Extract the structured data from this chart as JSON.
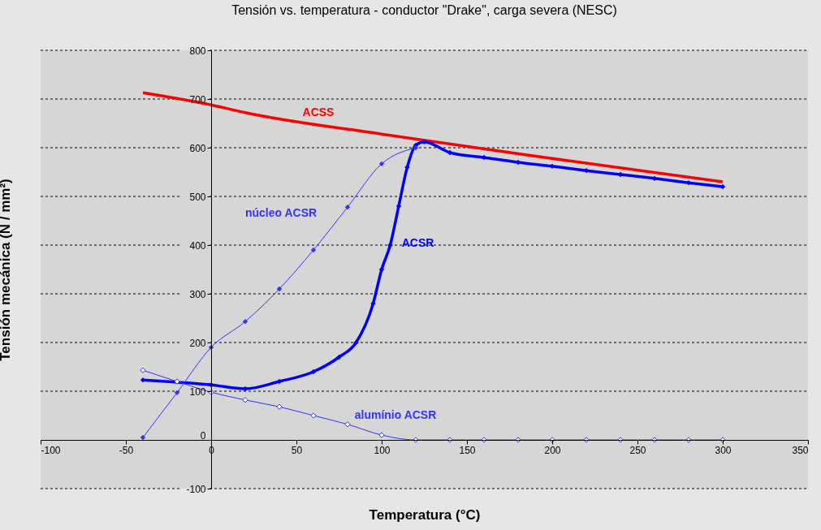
{
  "chart_data": {
    "type": "line",
    "title": "Tensión vs. temperatura - conductor \"Drake\", carga severa (NESC)",
    "xlabel": "Temperatura (°C)",
    "ylabel": "Tensión mecánica (N / mm²)",
    "xlim": [
      -100,
      350
    ],
    "xticks": [
      -100,
      -50,
      0,
      50,
      100,
      150,
      200,
      250,
      300,
      350
    ],
    "ylim": [
      -100,
      800
    ],
    "yticks": [
      -100,
      0,
      100,
      200,
      300,
      400,
      500,
      600,
      700,
      800
    ],
    "grid": "y",
    "legend": false,
    "series": [
      {
        "name": "ACSS",
        "color": "#ff0000",
        "marker": "none",
        "x": [
          -40,
          0,
          20,
          100,
          200,
          300
        ],
        "values": [
          713,
          688,
          672,
          628,
          578,
          530
        ]
      },
      {
        "name": "ACSR",
        "color": "#0000ff",
        "marker": "diamond",
        "x": [
          -40,
          0,
          20,
          40,
          60,
          75,
          85,
          95,
          100,
          105,
          110,
          115,
          120,
          125,
          140,
          160,
          180,
          200,
          220,
          240,
          260,
          280,
          300
        ],
        "values": [
          123,
          113,
          105,
          120,
          140,
          170,
          200,
          280,
          350,
          400,
          480,
          560,
          605,
          612,
          590,
          580,
          570,
          562,
          553,
          545,
          537,
          528,
          520
        ]
      },
      {
        "name": "núcleo ACSR",
        "color": "#3333ff",
        "marker": "diamond",
        "x": [
          -40,
          -20,
          0,
          20,
          40,
          60,
          80,
          100,
          120
        ],
        "values": [
          5,
          97,
          190,
          243,
          310,
          390,
          478,
          567,
          600
        ]
      },
      {
        "name": "alumínio ACSR",
        "color": "#3333ff",
        "marker": "diamond",
        "x": [
          -40,
          -20,
          0,
          20,
          40,
          60,
          80,
          100,
          120,
          140,
          160,
          180,
          200,
          220,
          240,
          260,
          280,
          300
        ],
        "values": [
          143,
          120,
          98,
          82,
          68,
          50,
          32,
          10,
          0,
          0,
          0,
          0,
          0,
          0,
          0,
          0,
          0,
          0
        ]
      }
    ]
  }
}
